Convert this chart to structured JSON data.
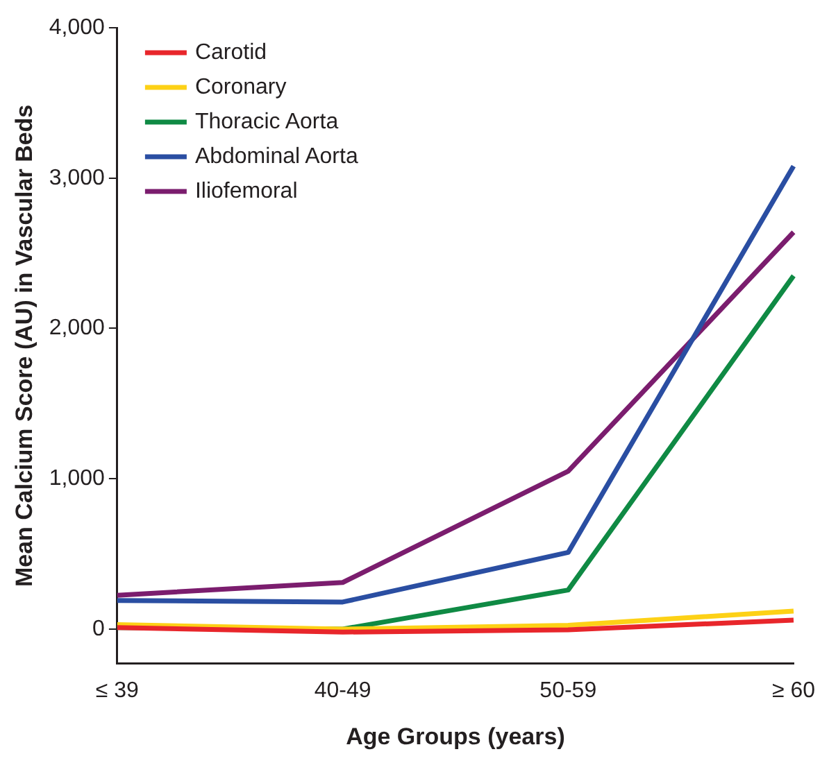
{
  "chart_data": {
    "type": "line",
    "xlabel": "Age Groups (years)",
    "ylabel": "Mean Calcium Score (AU) in Vascular Beds",
    "categories": [
      "≤ 39",
      "40-49",
      "50-59",
      "≥ 60"
    ],
    "series": [
      {
        "name": "Carotid",
        "color": "#e8262b",
        "values": [
          10,
          -20,
          -5,
          60
        ]
      },
      {
        "name": "Coronary",
        "color": "#fdd116",
        "values": [
          30,
          0,
          25,
          120
        ]
      },
      {
        "name": "Thoracic Aorta",
        "color": "#0f8a44",
        "values": [
          10,
          0,
          260,
          2350
        ]
      },
      {
        "name": "Abdominal Aorta",
        "color": "#2a4ea2",
        "values": [
          190,
          180,
          510,
          3080
        ]
      },
      {
        "name": "Iliofemoral",
        "color": "#7b1d6e",
        "values": [
          225,
          310,
          1050,
          2640
        ]
      }
    ],
    "ylim": [
      -230,
      4000
    ],
    "yticks": [
      {
        "value": 0,
        "label": "0"
      },
      {
        "value": 1000,
        "label": "1,000"
      },
      {
        "value": 2000,
        "label": "2,000"
      },
      {
        "value": 3000,
        "label": "3,000"
      },
      {
        "value": 4000,
        "label": "4,000"
      }
    ],
    "grid": false,
    "legend": "top left",
    "marker": "none",
    "line_style": "solid"
  }
}
